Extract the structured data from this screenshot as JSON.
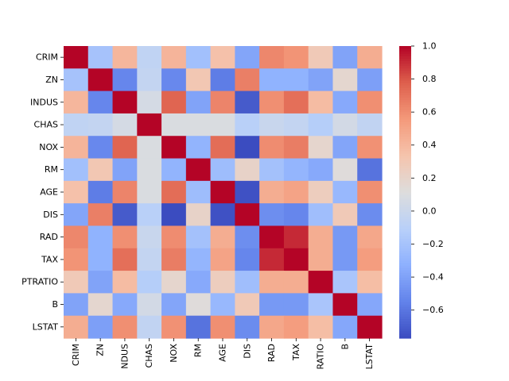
{
  "chart_data": {
    "type": "heatmap",
    "title": "",
    "xlabel": "",
    "ylabel": "",
    "x_labels": [
      "CRIM",
      "ZN",
      "NDUS",
      "CHAS",
      "NOX",
      "RM",
      "AGE",
      "DIS",
      "RAD",
      "TAX",
      "RATIO",
      "B",
      "LSTAT"
    ],
    "y_labels": [
      "CRIM",
      "ZN",
      "INDUS",
      "CHAS",
      "NOX",
      "RM",
      "AGE",
      "DIS",
      "RAD",
      "TAX",
      "PTRATIO",
      "B",
      "LSTAT"
    ],
    "values": [
      [
        1.0,
        -0.2,
        0.41,
        -0.06,
        0.42,
        -0.22,
        0.35,
        -0.38,
        0.63,
        0.58,
        0.29,
        -0.39,
        0.46
      ],
      [
        -0.2,
        1.0,
        -0.53,
        -0.04,
        -0.52,
        0.31,
        -0.57,
        0.66,
        -0.31,
        -0.31,
        -0.39,
        0.18,
        -0.41
      ],
      [
        0.41,
        -0.53,
        1.0,
        0.06,
        0.76,
        -0.39,
        0.64,
        -0.71,
        0.6,
        0.72,
        0.38,
        -0.36,
        0.6
      ],
      [
        -0.06,
        -0.04,
        0.06,
        1.0,
        0.09,
        0.09,
        0.09,
        -0.1,
        -0.01,
        -0.04,
        -0.12,
        0.05,
        -0.05
      ],
      [
        0.42,
        -0.52,
        0.76,
        0.09,
        1.0,
        -0.3,
        0.73,
        -0.77,
        0.61,
        0.67,
        0.19,
        -0.38,
        0.59
      ],
      [
        -0.22,
        0.31,
        -0.39,
        0.09,
        -0.3,
        1.0,
        -0.24,
        0.21,
        -0.21,
        -0.29,
        -0.36,
        0.13,
        -0.61
      ],
      [
        0.35,
        -0.57,
        0.64,
        0.09,
        0.73,
        -0.24,
        1.0,
        -0.75,
        0.46,
        0.51,
        0.26,
        -0.27,
        0.6
      ],
      [
        -0.38,
        0.66,
        -0.71,
        -0.1,
        -0.77,
        0.21,
        -0.75,
        1.0,
        -0.49,
        -0.53,
        -0.23,
        0.29,
        -0.5
      ],
      [
        0.63,
        -0.31,
        0.6,
        -0.01,
        0.61,
        -0.21,
        0.46,
        -0.49,
        1.0,
        0.91,
        0.46,
        -0.44,
        0.49
      ],
      [
        0.58,
        -0.31,
        0.72,
        -0.04,
        0.67,
        -0.29,
        0.51,
        -0.53,
        0.91,
        1.0,
        0.46,
        -0.44,
        0.54
      ],
      [
        0.29,
        -0.39,
        0.38,
        -0.12,
        0.19,
        -0.36,
        0.26,
        -0.23,
        0.46,
        0.46,
        1.0,
        -0.18,
        0.37
      ],
      [
        -0.39,
        0.18,
        -0.36,
        0.05,
        -0.38,
        0.13,
        -0.27,
        0.29,
        -0.44,
        -0.44,
        -0.18,
        1.0,
        -0.37
      ],
      [
        0.46,
        -0.41,
        0.6,
        -0.05,
        0.59,
        -0.61,
        0.6,
        -0.5,
        0.49,
        0.54,
        0.37,
        -0.37,
        1.0
      ]
    ],
    "colorscale": "coolwarm",
    "vmin": -0.77,
    "vmax": 1.0,
    "colorbar_ticks": [
      1.0,
      0.8,
      0.6,
      0.4,
      0.2,
      0.0,
      -0.2,
      -0.4,
      -0.6
    ],
    "colorbar_tick_labels": [
      "1.0",
      "0.8",
      "0.6",
      "0.4",
      "0.2",
      "0.0",
      "−0.2",
      "−0.4",
      "−0.6"
    ],
    "legend_position": "right",
    "grid": false
  }
}
